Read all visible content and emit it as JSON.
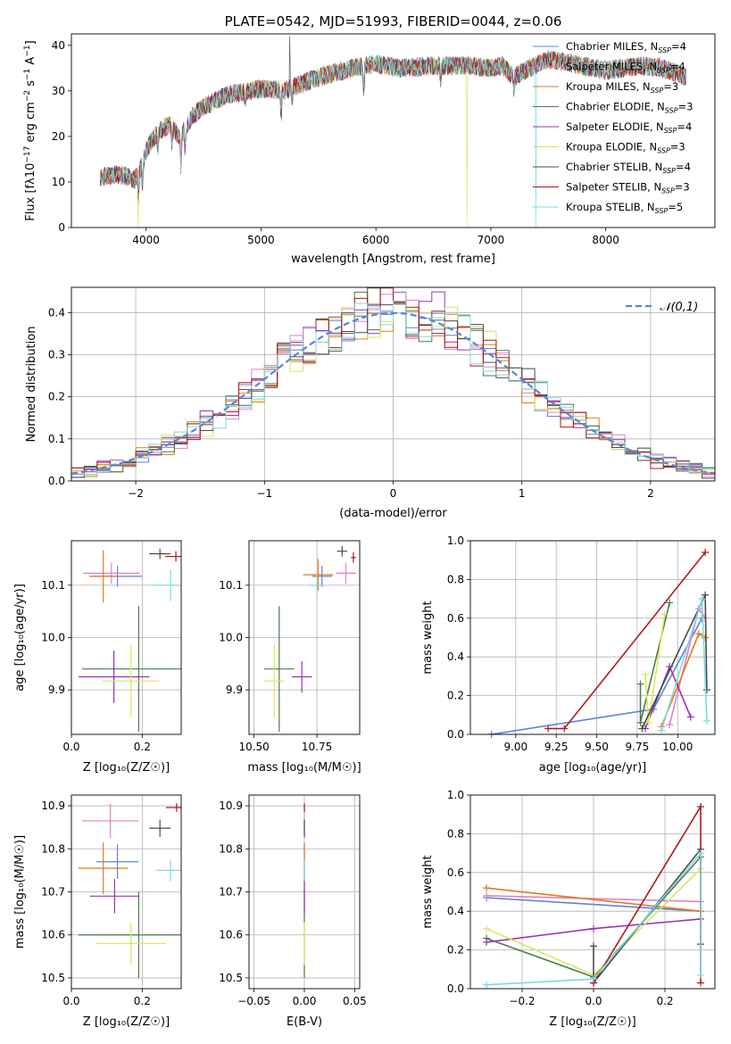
{
  "chart_data": [
    {
      "type": "line",
      "id": "spectrum",
      "title": "PLATE=0542, MJD=51993, FIBERID=0044, z=0.06",
      "xlabel": "wavelength [Angstrom, rest frame]",
      "ylabel": "Flux [f_λ10^-17 erg cm^-2 s^-1 A^-1]",
      "xlim": [
        3350,
        8950
      ],
      "ylim": [
        0,
        42.5
      ],
      "xticks": [
        4000,
        5000,
        6000,
        7000,
        8000
      ],
      "yticks": [
        0,
        10,
        20,
        30,
        40
      ],
      "continuum": {
        "x": [
          3600,
          3700,
          3800,
          3900,
          3950,
          4000,
          4100,
          4200,
          4300,
          4400,
          4500,
          4700,
          5000,
          5200,
          5500,
          5800,
          6000,
          6200,
          6500,
          6800,
          7000,
          7100,
          7200,
          7300,
          7500,
          7700,
          8000,
          8300,
          8500,
          8700
        ],
        "y": [
          11.0,
          11.5,
          11.5,
          10.5,
          13.0,
          17.0,
          21.0,
          22.5,
          20.0,
          24.5,
          26.5,
          29.0,
          30.5,
          30.0,
          33.0,
          35.0,
          36.0,
          35.0,
          35.5,
          35.5,
          35.0,
          35.5,
          33.0,
          34.5,
          37.0,
          36.0,
          34.5,
          35.5,
          35.0,
          33.0
        ]
      },
      "absorption_lines": [
        [
          3934,
          6.0
        ],
        [
          3969,
          5.5
        ],
        [
          4102,
          4.0
        ],
        [
          4227,
          4.5
        ],
        [
          4304,
          7.0
        ],
        [
          4340,
          4.5
        ],
        [
          4861,
          3.5
        ],
        [
          5175,
          6.0
        ],
        [
          5270,
          3.0
        ],
        [
          5893,
          7.0
        ],
        [
          6563,
          3.0
        ],
        [
          7200,
          2.5
        ]
      ],
      "features": [
        {
          "series": "Kroupa ELODIE",
          "type": "drop",
          "x": 3930,
          "to": 0
        },
        {
          "series": "Kroupa ELODIE",
          "type": "drop",
          "x": 6790,
          "to": 0
        },
        {
          "series": "Kroupa STELIB",
          "type": "drop",
          "x": 7390,
          "to": 0
        },
        {
          "series": "Chabrier STELIB",
          "type": "spike",
          "x": 5250,
          "to": 42
        }
      ],
      "series": [
        {
          "name": "Chabrier MILES, N_SSP=4",
          "color": "#5b84d6"
        },
        {
          "name": "Salpeter MILES, N_SSP=4",
          "color": "#e57fc0"
        },
        {
          "name": "Kroupa MILES, N_SSP=3",
          "color": "#e3791f"
        },
        {
          "name": "Chabrier ELODIE, N_SSP=3",
          "color": "#4d7a4d"
        },
        {
          "name": "Salpeter ELODIE, N_SSP=4",
          "color": "#9b30b5"
        },
        {
          "name": "Kroupa ELODIE, N_SSP=3",
          "color": "#d8e95a"
        },
        {
          "name": "Chabrier STELIB, N_SSP=4",
          "color": "#4a4a4a"
        },
        {
          "name": "Salpeter STELIB, N_SSP=3",
          "color": "#b01818"
        },
        {
          "name": "Kroupa STELIB, N_SSP=5",
          "color": "#7fd8e0"
        }
      ],
      "legend": "right"
    },
    {
      "type": "line",
      "id": "residuals",
      "xlabel": "(data-model)/error",
      "ylabel": "Normed distribution",
      "xlim": [
        -2.5,
        2.5
      ],
      "ylim": [
        0,
        0.46
      ],
      "xticks": [
        -2,
        -1,
        0,
        1,
        2
      ],
      "yticks": [
        0.0,
        0.1,
        0.2,
        0.3,
        0.4
      ],
      "grid": true,
      "reference": {
        "name": "𝒩(0,1)",
        "color": "#5b84d6"
      },
      "bin_width": 0.1,
      "histograms": [
        {
          "color": "#5b84d6",
          "seed": 1
        },
        {
          "color": "#e57fc0",
          "seed": 2
        },
        {
          "color": "#e3791f",
          "seed": 3
        },
        {
          "color": "#4d7a4d",
          "seed": 4
        },
        {
          "color": "#9b30b5",
          "seed": 5
        },
        {
          "color": "#d8e95a",
          "seed": 6
        },
        {
          "color": "#4a4a4a",
          "seed": 7
        },
        {
          "color": "#b01818",
          "seed": 8
        },
        {
          "color": "#7fd8e0",
          "seed": 9
        }
      ],
      "legend": "top-right"
    },
    {
      "type": "scatter",
      "id": "age_vs_Z",
      "xlabel": "Z [log₁₀(Z/Z☉)]",
      "ylabel": "age  [log₁₀(age/yr)]",
      "xlim": [
        0.0,
        0.31
      ],
      "ylim": [
        9.815,
        10.185
      ],
      "xticks": [
        0.0,
        0.2
      ],
      "yticks": [
        9.9,
        10.0,
        10.1
      ],
      "grid": true,
      "points": [
        {
          "color": "#5b84d6",
          "x": 0.13,
          "y": 10.117,
          "xerr": 0.07,
          "yerr": 0.02
        },
        {
          "color": "#e57fc0",
          "x": 0.113,
          "y": 10.123,
          "xerr": 0.08,
          "yerr": 0.02
        },
        {
          "color": "#e3791f",
          "x": 0.09,
          "y": 10.117,
          "xerr": 0.04,
          "yerr": 0.05
        },
        {
          "color": "#4d7a4d",
          "x": 0.19,
          "y": 9.94,
          "xerr": 0.16,
          "yerr": 0.12
        },
        {
          "color": "#9b30b5",
          "x": 0.12,
          "y": 9.925,
          "xerr": 0.1,
          "yerr": 0.05
        },
        {
          "color": "#d8e95a",
          "x": 0.168,
          "y": 9.917,
          "xerr": 0.08,
          "yerr": 0.07
        },
        {
          "color": "#4a4a4a",
          "x": 0.25,
          "y": 10.16,
          "xerr": 0.03,
          "yerr": 0.01
        },
        {
          "color": "#b01818",
          "x": 0.295,
          "y": 10.155,
          "xerr": 0.03,
          "yerr": 0.01
        },
        {
          "color": "#7fd8e0",
          "x": 0.28,
          "y": 10.1,
          "xerr": 0.05,
          "yerr": 0.03
        }
      ]
    },
    {
      "type": "scatter",
      "id": "age_vs_mass",
      "xlabel": "mass [log₁₀(M/M☉)]",
      "ylabel": "",
      "xlim": [
        10.48,
        10.92
      ],
      "ylim": [
        9.815,
        10.185
      ],
      "xticks": [
        10.5,
        10.75
      ],
      "yticks": [
        9.9,
        10.0,
        10.1
      ],
      "grid": true,
      "points": [
        {
          "color": "#5b84d6",
          "x": 10.77,
          "y": 10.117,
          "xerr": 0.04,
          "yerr": 0.02
        },
        {
          "color": "#e57fc0",
          "x": 10.865,
          "y": 10.123,
          "xerr": 0.04,
          "yerr": 0.02
        },
        {
          "color": "#e3791f",
          "x": 10.755,
          "y": 10.12,
          "xerr": 0.06,
          "yerr": 0.03
        },
        {
          "color": "#4d7a4d",
          "x": 10.6,
          "y": 9.94,
          "xerr": 0.06,
          "yerr": 0.12
        },
        {
          "color": "#9b30b5",
          "x": 10.69,
          "y": 9.925,
          "xerr": 0.04,
          "yerr": 0.03
        },
        {
          "color": "#d8e95a",
          "x": 10.58,
          "y": 9.917,
          "xerr": 0.04,
          "yerr": 0.07
        },
        {
          "color": "#4a4a4a",
          "x": 10.85,
          "y": 10.165,
          "xerr": 0.02,
          "yerr": 0.01
        },
        {
          "color": "#b01818",
          "x": 10.895,
          "y": 10.153,
          "xerr": 0.01,
          "yerr": 0.01
        },
        {
          "color": "#7fd8e0",
          "x": 10.75,
          "y": 10.1,
          "xerr": 0.03,
          "yerr": 0.02
        }
      ]
    },
    {
      "type": "line",
      "id": "weight_vs_age",
      "xlabel": "age  [log₁₀(age/yr)]",
      "ylabel": "mass weight",
      "xlim": [
        8.72,
        10.23
      ],
      "ylim": [
        0,
        1.0
      ],
      "xticks": [
        9.0,
        9.25,
        9.5,
        9.75,
        10.0
      ],
      "yticks": [
        0.0,
        0.2,
        0.4,
        0.6,
        0.8,
        1.0
      ],
      "grid": true,
      "series": [
        {
          "color": "#5b84d6",
          "x": [
            8.85,
            9.85,
            10.15
          ],
          "y": [
            0.0,
            0.13,
            0.6
          ]
        },
        {
          "color": "#e57fc0",
          "x": [
            9.95,
            10.13,
            10.17
          ],
          "y": [
            0.05,
            0.65,
            0.6
          ]
        },
        {
          "color": "#e3791f",
          "x": [
            9.9,
            10.13,
            10.17
          ],
          "y": [
            0.04,
            0.52,
            0.5
          ]
        },
        {
          "color": "#4d7a4d",
          "x": [
            9.77,
            9.77,
            9.95
          ],
          "y": [
            0.26,
            0.06,
            0.68
          ]
        },
        {
          "color": "#9b30b5",
          "x": [
            9.8,
            9.95,
            10.08
          ],
          "y": [
            0.03,
            0.35,
            0.09
          ]
        },
        {
          "color": "#d8e95a",
          "x": [
            9.8,
            9.82,
            9.92
          ],
          "y": [
            0.31,
            0.06,
            0.62
          ]
        },
        {
          "color": "#4a4a4a",
          "x": [
            9.78,
            10.17,
            10.18
          ],
          "y": [
            0.03,
            0.72,
            0.23
          ]
        },
        {
          "color": "#b01818",
          "x": [
            9.2,
            9.3,
            10.17
          ],
          "y": [
            0.03,
            0.03,
            0.94
          ]
        },
        {
          "color": "#7fd8e0",
          "x": [
            9.9,
            10.15,
            10.18
          ],
          "y": [
            0.02,
            0.7,
            0.07
          ]
        }
      ]
    },
    {
      "type": "scatter",
      "id": "mass_vs_Z",
      "xlabel": "Z [log₁₀(Z/Z☉)]",
      "ylabel": "mass [log₁₀(M/M☉)]",
      "xlim": [
        0.0,
        0.31
      ],
      "ylim": [
        10.475,
        10.925
      ],
      "xticks": [
        0.0,
        0.2
      ],
      "yticks": [
        10.5,
        10.6,
        10.7,
        10.8,
        10.9
      ],
      "grid": true,
      "points": [
        {
          "color": "#5b84d6",
          "x": 0.13,
          "y": 10.77,
          "xerr": 0.06,
          "yerr": 0.04
        },
        {
          "color": "#e57fc0",
          "x": 0.11,
          "y": 10.865,
          "xerr": 0.08,
          "yerr": 0.04
        },
        {
          "color": "#e3791f",
          "x": 0.09,
          "y": 10.755,
          "xerr": 0.07,
          "yerr": 0.06
        },
        {
          "color": "#4d7a4d",
          "x": 0.19,
          "y": 10.6,
          "xerr": 0.17,
          "yerr": 0.1
        },
        {
          "color": "#9b30b5",
          "x": 0.122,
          "y": 10.69,
          "xerr": 0.07,
          "yerr": 0.04
        },
        {
          "color": "#d8e95a",
          "x": 0.168,
          "y": 10.58,
          "xerr": 0.1,
          "yerr": 0.05
        },
        {
          "color": "#4a4a4a",
          "x": 0.25,
          "y": 10.848,
          "xerr": 0.03,
          "yerr": 0.02
        },
        {
          "color": "#b01818",
          "x": 0.297,
          "y": 10.896,
          "xerr": 0.03,
          "yerr": 0.01
        },
        {
          "color": "#7fd8e0",
          "x": 0.28,
          "y": 10.75,
          "xerr": 0.04,
          "yerr": 0.025
        }
      ]
    },
    {
      "type": "scatter",
      "id": "mass_vs_ebv",
      "xlabel": "E(B-V)",
      "ylabel": "",
      "xlim": [
        -0.055,
        0.055
      ],
      "ylim": [
        10.475,
        10.925
      ],
      "xticks": [
        -0.05,
        0.0,
        0.05
      ],
      "yticks": [
        10.5,
        10.6,
        10.7,
        10.8,
        10.9
      ],
      "grid": true,
      "points": [
        {
          "color": "#5b84d6",
          "x": 0.0,
          "y": 10.77,
          "xerr": 0,
          "yerr": 0.04
        },
        {
          "color": "#e57fc0",
          "x": 0.0,
          "y": 10.865,
          "xerr": 0,
          "yerr": 0.04
        },
        {
          "color": "#e3791f",
          "x": 0.0,
          "y": 10.755,
          "xerr": 0,
          "yerr": 0.06
        },
        {
          "color": "#4d7a4d",
          "x": 0.0,
          "y": 10.6,
          "xerr": 0,
          "yerr": 0.1
        },
        {
          "color": "#9b30b5",
          "x": 0.0,
          "y": 10.69,
          "xerr": 0,
          "yerr": 0.04
        },
        {
          "color": "#d8e95a",
          "x": 0.0,
          "y": 10.58,
          "xerr": 0,
          "yerr": 0.05
        },
        {
          "color": "#4a4a4a",
          "x": 0.0,
          "y": 10.848,
          "xerr": 0,
          "yerr": 0.02
        },
        {
          "color": "#b01818",
          "x": 0.0,
          "y": 10.896,
          "xerr": 0,
          "yerr": 0.01
        },
        {
          "color": "#7fd8e0",
          "x": 0.0,
          "y": 10.75,
          "xerr": 0,
          "yerr": 0.025
        }
      ]
    },
    {
      "type": "line",
      "id": "weight_vs_Z",
      "xlabel": "Z [log₁₀(Z/Z☉)]",
      "ylabel": "mass weight",
      "xlim": [
        -0.345,
        0.34
      ],
      "ylim": [
        0,
        1.0
      ],
      "xticks": [
        -0.2,
        0.0,
        0.2
      ],
      "yticks": [
        0.0,
        0.2,
        0.4,
        0.6,
        0.8,
        1.0
      ],
      "grid": true,
      "series": [
        {
          "color": "#5b84d6",
          "x": [
            -0.3,
            0.3
          ],
          "y": [
            0.47,
            0.4
          ]
        },
        {
          "color": "#e57fc0",
          "x": [
            -0.3,
            0.3
          ],
          "y": [
            0.48,
            0.45
          ]
        },
        {
          "color": "#e3791f",
          "x": [
            -0.3,
            0.3
          ],
          "y": [
            0.52,
            0.4
          ]
        },
        {
          "color": "#4d7a4d",
          "x": [
            -0.3,
            0.0,
            0.3
          ],
          "y": [
            0.26,
            0.06,
            0.68
          ]
        },
        {
          "color": "#9b30b5",
          "x": [
            -0.3,
            0.0,
            0.3
          ],
          "y": [
            0.24,
            0.31,
            0.36
          ]
        },
        {
          "color": "#d8e95a",
          "x": [
            -0.3,
            0.0,
            0.3
          ],
          "y": [
            0.31,
            0.07,
            0.62
          ]
        },
        {
          "color": "#4a4a4a",
          "x": [
            0.0,
            0.0,
            0.3,
            0.3
          ],
          "y": [
            0.22,
            0.03,
            0.72,
            0.23
          ]
        },
        {
          "color": "#b01818",
          "x": [
            0.0,
            0.3,
            0.3
          ],
          "y": [
            0.03,
            0.94,
            0.03
          ]
        },
        {
          "color": "#7fd8e0",
          "x": [
            -0.3,
            0.0,
            0.3,
            0.3
          ],
          "y": [
            0.02,
            0.05,
            0.7,
            0.07
          ]
        }
      ]
    }
  ]
}
